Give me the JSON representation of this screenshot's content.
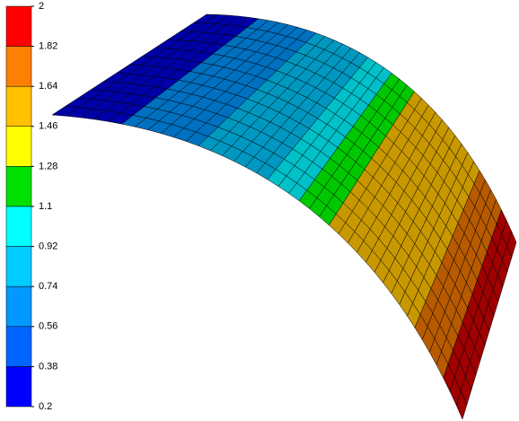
{
  "colorbar": {
    "ticks": [
      2,
      1.82,
      1.64,
      1.46,
      1.28,
      1.1,
      0.92,
      0.74,
      0.56,
      0.38,
      0.2
    ],
    "colors": [
      "#ff0000",
      "#ff8000",
      "#ffc000",
      "#ffff00",
      "#00e000",
      "#00ffff",
      "#00ccff",
      "#0099ff",
      "#0066ff",
      "#0000ff"
    ]
  }
}
